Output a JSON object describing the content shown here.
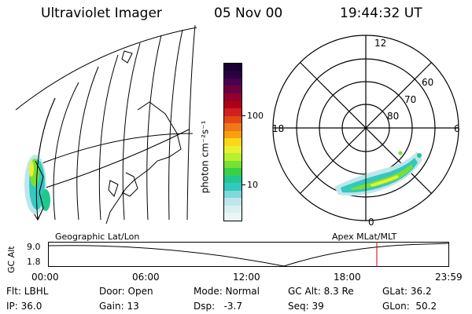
{
  "header": {
    "title": "Ultraviolet Imager",
    "date": "05 Nov 00",
    "time": "19:44:32 UT"
  },
  "colorbar": {
    "label": "photon cm⁻²s⁻¹",
    "ticks": [
      "100",
      "10"
    ],
    "colors": [
      "#eaf6f6",
      "#d8f0f0",
      "#bfe6ea",
      "#7fd8dc",
      "#33c8c0",
      "#20c890",
      "#38d048",
      "#78e030",
      "#b8f030",
      "#e8f030",
      "#f8d818",
      "#f8a010",
      "#f07818",
      "#e04818",
      "#d02020",
      "#b00018",
      "#900030",
      "#6a0040",
      "#4a0050",
      "#2a0040",
      "#1a0030"
    ]
  },
  "polar": {
    "labels": {
      "top": "12",
      "bottom": "0",
      "left": "18",
      "right": "6"
    },
    "lat_labels": [
      "60",
      "70",
      "80"
    ]
  },
  "map_label": "Geographic Lat/Lon",
  "polar_label": "Apex MLat/MLT",
  "altitude_plot": {
    "ylabel": "GC Alt",
    "y_ticks": [
      "9.0",
      "1.8"
    ],
    "x_ticks": [
      "00:00",
      "06:00",
      "12:00",
      "18:00",
      "23:59"
    ],
    "marker_color": "#d00000"
  },
  "info": {
    "row1": [
      "Flt: LBHL",
      "Door: Open",
      "Mode: Normal",
      "GC Alt: 8.3 Re",
      "GLat: 36.2"
    ],
    "row2": [
      "IP: 36.0",
      "Gain: 13",
      "Dsp:   -3.7",
      "Seq: 39",
      "GLon:  50.2"
    ]
  }
}
